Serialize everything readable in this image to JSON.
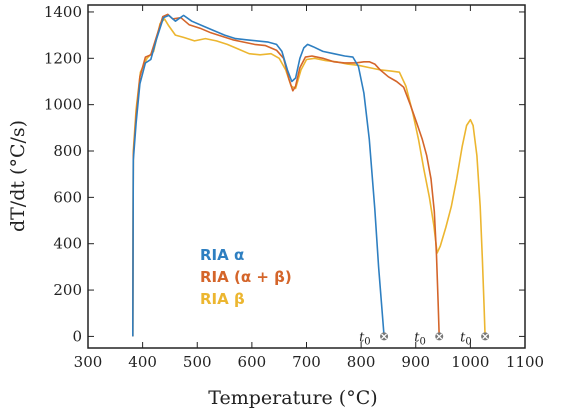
{
  "chart_data": {
    "type": "line",
    "xlabel": "Temperature (°C)",
    "ylabel": "dT/dt (°C/s)",
    "xlim": [
      300,
      1100
    ],
    "ylim": [
      -50,
      1430
    ],
    "xticks": [
      300,
      400,
      500,
      600,
      700,
      800,
      900,
      1000,
      1100
    ],
    "yticks": [
      0,
      200,
      400,
      600,
      800,
      1000,
      1200,
      1400
    ],
    "grid": false,
    "legend_position": "center-left",
    "series": [
      {
        "name": "RIA α",
        "color": "#2E7FC1",
        "points": [
          [
            382,
            0
          ],
          [
            383,
            760
          ],
          [
            388,
            920
          ],
          [
            395,
            1090
          ],
          [
            405,
            1180
          ],
          [
            415,
            1195
          ],
          [
            425,
            1280
          ],
          [
            438,
            1375
          ],
          [
            448,
            1385
          ],
          [
            460,
            1360
          ],
          [
            475,
            1385
          ],
          [
            490,
            1360
          ],
          [
            510,
            1340
          ],
          [
            530,
            1320
          ],
          [
            550,
            1300
          ],
          [
            570,
            1285
          ],
          [
            590,
            1280
          ],
          [
            610,
            1275
          ],
          [
            630,
            1270
          ],
          [
            645,
            1260
          ],
          [
            655,
            1230
          ],
          [
            665,
            1150
          ],
          [
            673,
            1100
          ],
          [
            680,
            1115
          ],
          [
            688,
            1200
          ],
          [
            695,
            1245
          ],
          [
            702,
            1260
          ],
          [
            712,
            1250
          ],
          [
            730,
            1230
          ],
          [
            750,
            1220
          ],
          [
            770,
            1210
          ],
          [
            785,
            1205
          ],
          [
            795,
            1165
          ],
          [
            805,
            1050
          ],
          [
            815,
            850
          ],
          [
            825,
            550
          ],
          [
            832,
            300
          ],
          [
            838,
            120
          ],
          [
            842,
            0
          ]
        ]
      },
      {
        "name": "RIA (α + β)",
        "color": "#D4652A",
        "points": [
          [
            382,
            0
          ],
          [
            383,
            780
          ],
          [
            388,
            950
          ],
          [
            395,
            1120
          ],
          [
            405,
            1205
          ],
          [
            415,
            1215
          ],
          [
            425,
            1290
          ],
          [
            437,
            1380
          ],
          [
            446,
            1390
          ],
          [
            455,
            1370
          ],
          [
            470,
            1375
          ],
          [
            485,
            1345
          ],
          [
            505,
            1330
          ],
          [
            525,
            1310
          ],
          [
            545,
            1295
          ],
          [
            565,
            1280
          ],
          [
            585,
            1270
          ],
          [
            605,
            1260
          ],
          [
            625,
            1255
          ],
          [
            645,
            1235
          ],
          [
            658,
            1200
          ],
          [
            668,
            1110
          ],
          [
            675,
            1060
          ],
          [
            680,
            1080
          ],
          [
            688,
            1160
          ],
          [
            698,
            1205
          ],
          [
            710,
            1210
          ],
          [
            730,
            1200
          ],
          [
            750,
            1185
          ],
          [
            770,
            1180
          ],
          [
            790,
            1180
          ],
          [
            805,
            1185
          ],
          [
            815,
            1185
          ],
          [
            825,
            1175
          ],
          [
            835,
            1150
          ],
          [
            850,
            1120
          ],
          [
            865,
            1100
          ],
          [
            878,
            1075
          ],
          [
            890,
            1000
          ],
          [
            902,
            920
          ],
          [
            912,
            850
          ],
          [
            920,
            780
          ],
          [
            928,
            680
          ],
          [
            934,
            540
          ],
          [
            938,
            350
          ],
          [
            941,
            150
          ],
          [
            943,
            0
          ]
        ]
      },
      {
        "name": "RIA β",
        "color": "#ECB630",
        "points": [
          [
            382,
            0
          ],
          [
            383,
            800
          ],
          [
            388,
            980
          ],
          [
            396,
            1140
          ],
          [
            408,
            1200
          ],
          [
            420,
            1230
          ],
          [
            432,
            1350
          ],
          [
            440,
            1370
          ],
          [
            448,
            1340
          ],
          [
            460,
            1300
          ],
          [
            475,
            1290
          ],
          [
            495,
            1275
          ],
          [
            515,
            1285
          ],
          [
            535,
            1275
          ],
          [
            555,
            1260
          ],
          [
            575,
            1240
          ],
          [
            595,
            1220
          ],
          [
            615,
            1215
          ],
          [
            635,
            1220
          ],
          [
            650,
            1200
          ],
          [
            662,
            1150
          ],
          [
            672,
            1080
          ],
          [
            680,
            1070
          ],
          [
            690,
            1150
          ],
          [
            700,
            1195
          ],
          [
            715,
            1200
          ],
          [
            735,
            1190
          ],
          [
            755,
            1185
          ],
          [
            775,
            1175
          ],
          [
            795,
            1170
          ],
          [
            815,
            1160
          ],
          [
            835,
            1150
          ],
          [
            855,
            1145
          ],
          [
            870,
            1140
          ],
          [
            882,
            1080
          ],
          [
            895,
            960
          ],
          [
            905,
            850
          ],
          [
            915,
            720
          ],
          [
            925,
            600
          ],
          [
            933,
            480
          ],
          [
            939,
            360
          ],
          [
            945,
            390
          ],
          [
            955,
            470
          ],
          [
            965,
            560
          ],
          [
            975,
            680
          ],
          [
            985,
            820
          ],
          [
            993,
            910
          ],
          [
            1000,
            935
          ],
          [
            1005,
            910
          ],
          [
            1012,
            780
          ],
          [
            1018,
            560
          ],
          [
            1022,
            330
          ],
          [
            1025,
            140
          ],
          [
            1027,
            0
          ]
        ]
      }
    ],
    "annotations": [
      {
        "text": "t0",
        "x": 842,
        "y": 0
      },
      {
        "text": "t0",
        "x": 943,
        "y": 0
      },
      {
        "text": "t0",
        "x": 1027,
        "y": 0
      }
    ]
  }
}
